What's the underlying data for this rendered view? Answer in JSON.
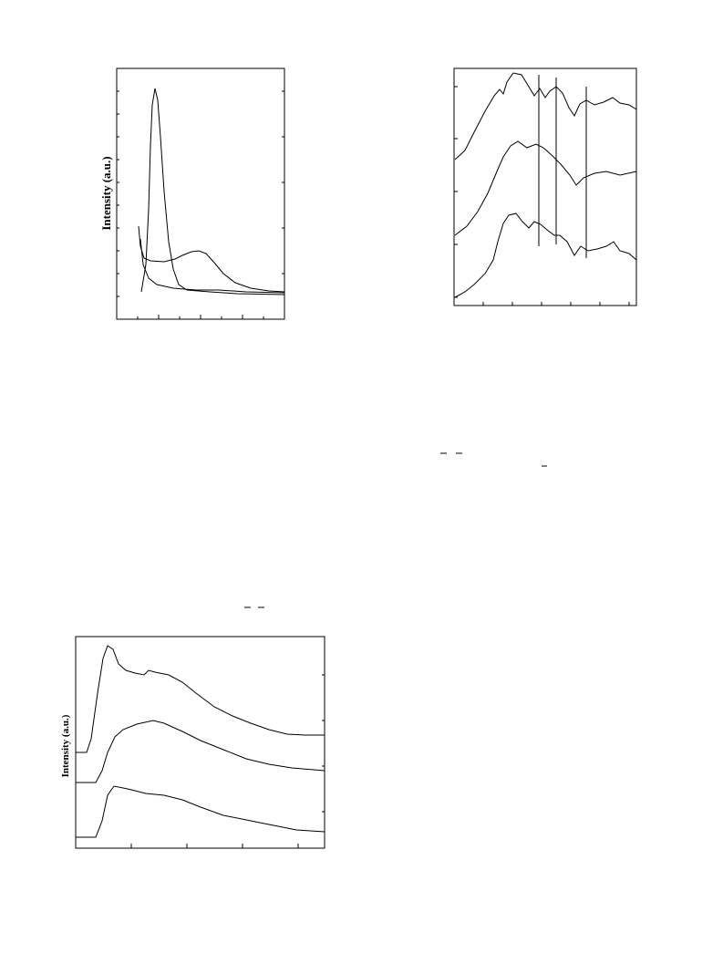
{
  "figure1": {
    "ylabel": "Intensity (a.u.)"
  },
  "figure3": {
    "ylabel": "Intensity (a.u.)"
  }
}
